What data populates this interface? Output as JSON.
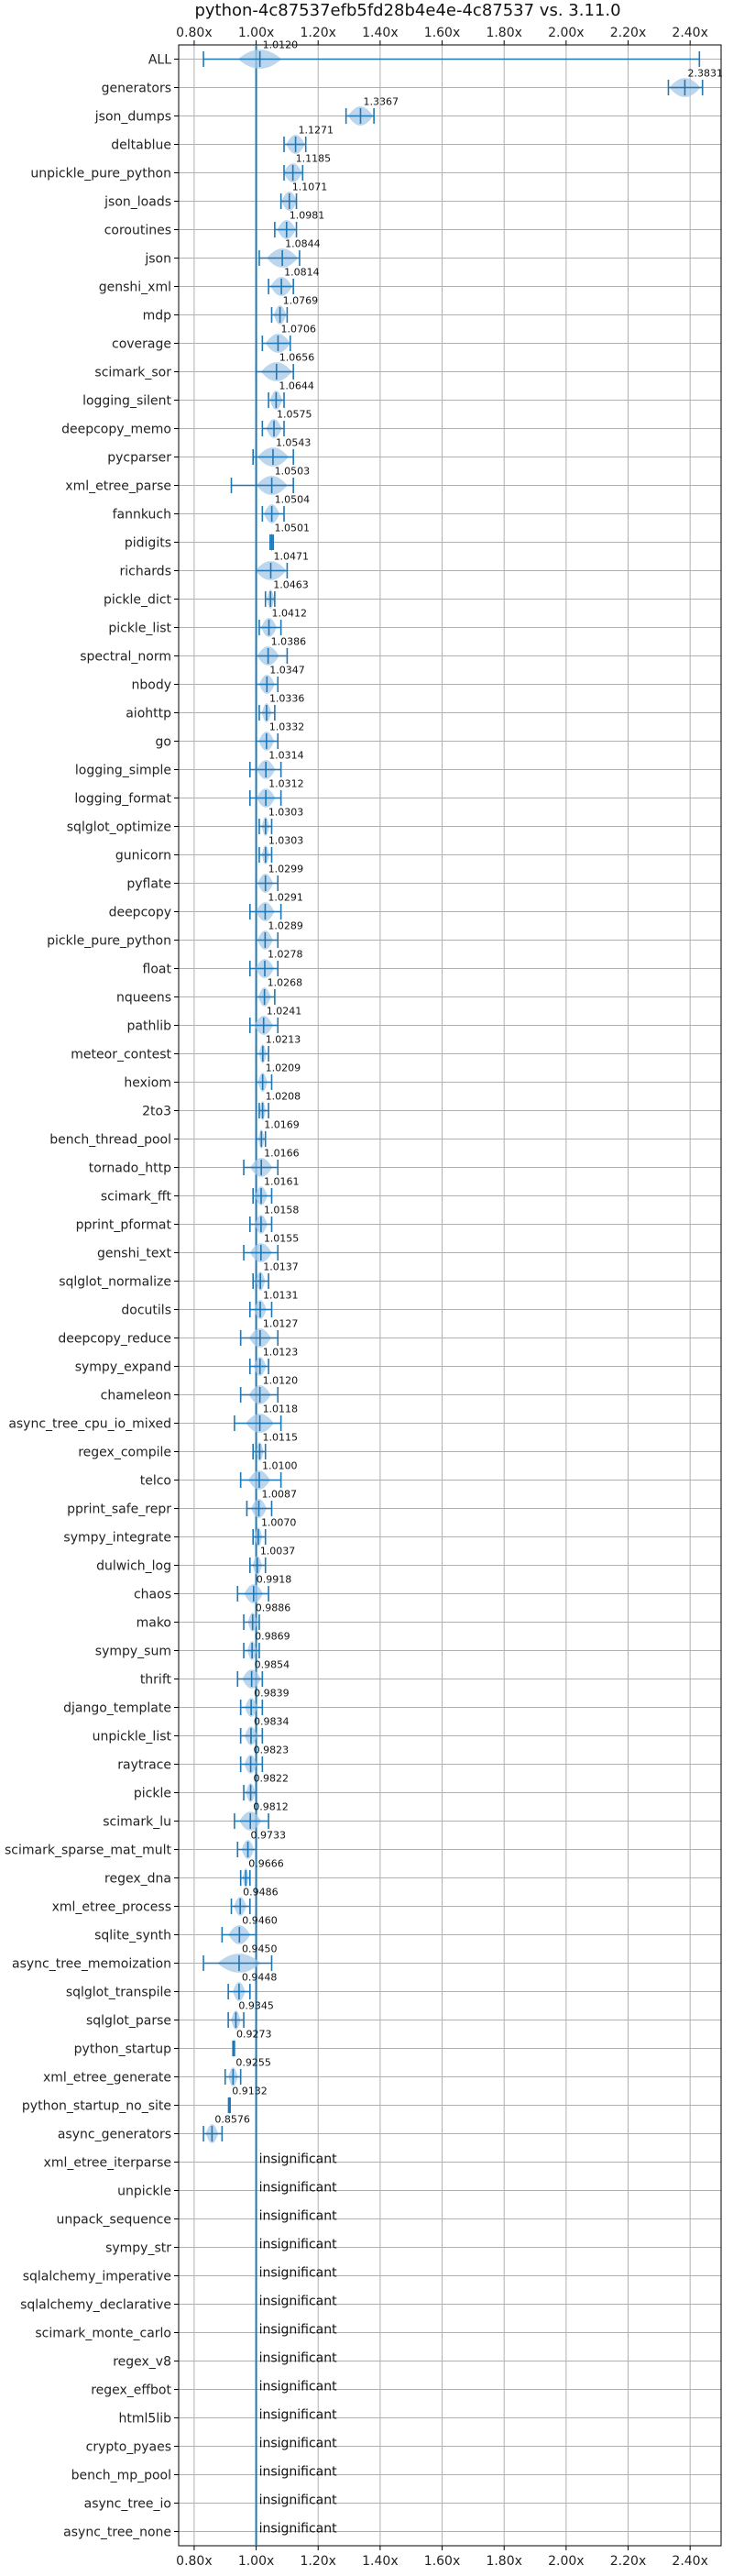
{
  "chart_data": {
    "type": "violin",
    "title": "python-4c87537efb5fd28b4e4e-4c87537 vs. 3.11.0",
    "xlim": [
      0.75,
      2.5
    ],
    "xticks": [
      0.8,
      1.0,
      1.2,
      1.4,
      1.6,
      1.8,
      2.0,
      2.2,
      2.4
    ],
    "xtick_labels": [
      "0.80x",
      "1.00x",
      "1.20x",
      "1.40x",
      "1.60x",
      "1.80x",
      "2.00x",
      "2.20x",
      "2.40x"
    ],
    "reference_line": 1.0,
    "grid": true,
    "insignificant_label": "insignificant",
    "benchmarks": [
      {
        "name": "ALL",
        "value": 1.012,
        "label": "1.0120",
        "low": 0.83,
        "high": 2.43,
        "spread": 0.07
      },
      {
        "name": "generators",
        "value": 2.3831,
        "label": "2.3831",
        "low": 2.33,
        "high": 2.44,
        "spread": 0.05
      },
      {
        "name": "json_dumps",
        "value": 1.3367,
        "label": "1.3367",
        "low": 1.29,
        "high": 1.38,
        "spread": 0.04
      },
      {
        "name": "deltablue",
        "value": 1.1271,
        "label": "1.1271",
        "low": 1.09,
        "high": 1.16,
        "spread": 0.03
      },
      {
        "name": "unpickle_pure_python",
        "value": 1.1185,
        "label": "1.1185",
        "low": 1.09,
        "high": 1.15,
        "spread": 0.03
      },
      {
        "name": "json_loads",
        "value": 1.1071,
        "label": "1.1071",
        "low": 1.08,
        "high": 1.13,
        "spread": 0.025
      },
      {
        "name": "coroutines",
        "value": 1.0981,
        "label": "1.0981",
        "low": 1.06,
        "high": 1.13,
        "spread": 0.03
      },
      {
        "name": "json",
        "value": 1.0844,
        "label": "1.0844",
        "low": 1.01,
        "high": 1.14,
        "spread": 0.05
      },
      {
        "name": "genshi_xml",
        "value": 1.0814,
        "label": "1.0814",
        "low": 1.04,
        "high": 1.12,
        "spread": 0.035
      },
      {
        "name": "mdp",
        "value": 1.0769,
        "label": "1.0769",
        "low": 1.05,
        "high": 1.1,
        "spread": 0.02
      },
      {
        "name": "coverage",
        "value": 1.0706,
        "label": "1.0706",
        "low": 1.02,
        "high": 1.11,
        "spread": 0.04
      },
      {
        "name": "scimark_sor",
        "value": 1.0656,
        "label": "1.0656",
        "low": 1.0,
        "high": 1.12,
        "spread": 0.05
      },
      {
        "name": "logging_silent",
        "value": 1.0644,
        "label": "1.0644",
        "low": 1.04,
        "high": 1.09,
        "spread": 0.02
      },
      {
        "name": "deepcopy_memo",
        "value": 1.0575,
        "label": "1.0575",
        "low": 1.02,
        "high": 1.09,
        "spread": 0.025
      },
      {
        "name": "pycparser",
        "value": 1.0543,
        "label": "1.0543",
        "low": 0.99,
        "high": 1.12,
        "spread": 0.05
      },
      {
        "name": "xml_etree_parse",
        "value": 1.0503,
        "label": "1.0503",
        "low": 0.92,
        "high": 1.12,
        "spread": 0.05
      },
      {
        "name": "fannkuch",
        "value": 1.0504,
        "label": "1.0504",
        "low": 1.02,
        "high": 1.09,
        "spread": 0.025
      },
      {
        "name": "pidigits",
        "value": 1.0501,
        "label": "1.0501",
        "low": 1.045,
        "high": 1.055,
        "spread": 0.005
      },
      {
        "name": "richards",
        "value": 1.0471,
        "label": "1.0471",
        "low": 1.0,
        "high": 1.1,
        "spread": 0.05
      },
      {
        "name": "pickle_dict",
        "value": 1.0463,
        "label": "1.0463",
        "low": 1.03,
        "high": 1.06,
        "spread": 0.012
      },
      {
        "name": "pickle_list",
        "value": 1.0412,
        "label": "1.0412",
        "low": 1.01,
        "high": 1.08,
        "spread": 0.025
      },
      {
        "name": "spectral_norm",
        "value": 1.0386,
        "label": "1.0386",
        "low": 1.0,
        "high": 1.1,
        "spread": 0.035
      },
      {
        "name": "nbody",
        "value": 1.0347,
        "label": "1.0347",
        "low": 1.0,
        "high": 1.07,
        "spread": 0.025
      },
      {
        "name": "aiohttp",
        "value": 1.0336,
        "label": "1.0336",
        "low": 1.01,
        "high": 1.06,
        "spread": 0.015
      },
      {
        "name": "go",
        "value": 1.0332,
        "label": "1.0332",
        "low": 1.0,
        "high": 1.07,
        "spread": 0.025
      },
      {
        "name": "logging_simple",
        "value": 1.0314,
        "label": "1.0314",
        "low": 0.98,
        "high": 1.08,
        "spread": 0.03
      },
      {
        "name": "logging_format",
        "value": 1.0312,
        "label": "1.0312",
        "low": 0.98,
        "high": 1.08,
        "spread": 0.03
      },
      {
        "name": "sqlglot_optimize",
        "value": 1.0303,
        "label": "1.0303",
        "low": 1.01,
        "high": 1.05,
        "spread": 0.012
      },
      {
        "name": "gunicorn",
        "value": 1.0303,
        "label": "1.0303",
        "low": 1.01,
        "high": 1.05,
        "spread": 0.012
      },
      {
        "name": "pyflate",
        "value": 1.0299,
        "label": "1.0299",
        "low": 1.0,
        "high": 1.07,
        "spread": 0.025
      },
      {
        "name": "deepcopy",
        "value": 1.0291,
        "label": "1.0291",
        "low": 0.98,
        "high": 1.08,
        "spread": 0.03
      },
      {
        "name": "pickle_pure_python",
        "value": 1.0289,
        "label": "1.0289",
        "low": 1.0,
        "high": 1.07,
        "spread": 0.025
      },
      {
        "name": "float",
        "value": 1.0278,
        "label": "1.0278",
        "low": 0.98,
        "high": 1.07,
        "spread": 0.03
      },
      {
        "name": "nqueens",
        "value": 1.0268,
        "label": "1.0268",
        "low": 1.0,
        "high": 1.06,
        "spread": 0.02
      },
      {
        "name": "pathlib",
        "value": 1.0241,
        "label": "1.0241",
        "low": 0.98,
        "high": 1.07,
        "spread": 0.03
      },
      {
        "name": "meteor_contest",
        "value": 1.0213,
        "label": "1.0213",
        "low": 1.0,
        "high": 1.04,
        "spread": 0.012
      },
      {
        "name": "hexiom",
        "value": 1.0209,
        "label": "1.0209",
        "low": 1.0,
        "high": 1.05,
        "spread": 0.015
      },
      {
        "name": "2to3",
        "value": 1.0208,
        "label": "1.0208",
        "low": 1.01,
        "high": 1.04,
        "spread": 0.01
      },
      {
        "name": "bench_thread_pool",
        "value": 1.0169,
        "label": "1.0169",
        "low": 1.0,
        "high": 1.03,
        "spread": 0.01
      },
      {
        "name": "tornado_http",
        "value": 1.0166,
        "label": "1.0166",
        "low": 0.96,
        "high": 1.07,
        "spread": 0.035
      },
      {
        "name": "scimark_fft",
        "value": 1.0161,
        "label": "1.0161",
        "low": 0.99,
        "high": 1.05,
        "spread": 0.02
      },
      {
        "name": "pprint_pformat",
        "value": 1.0158,
        "label": "1.0158",
        "low": 0.98,
        "high": 1.05,
        "spread": 0.02
      },
      {
        "name": "genshi_text",
        "value": 1.0155,
        "label": "1.0155",
        "low": 0.96,
        "high": 1.07,
        "spread": 0.035
      },
      {
        "name": "sqlglot_normalize",
        "value": 1.0137,
        "label": "1.0137",
        "low": 0.99,
        "high": 1.04,
        "spread": 0.015
      },
      {
        "name": "docutils",
        "value": 1.0131,
        "label": "1.0131",
        "low": 0.98,
        "high": 1.05,
        "spread": 0.02
      },
      {
        "name": "deepcopy_reduce",
        "value": 1.0127,
        "label": "1.0127",
        "low": 0.95,
        "high": 1.07,
        "spread": 0.035
      },
      {
        "name": "sympy_expand",
        "value": 1.0123,
        "label": "1.0123",
        "low": 0.98,
        "high": 1.04,
        "spread": 0.02
      },
      {
        "name": "chameleon",
        "value": 1.012,
        "label": "1.0120",
        "low": 0.95,
        "high": 1.07,
        "spread": 0.035
      },
      {
        "name": "async_tree_cpu_io_mixed",
        "value": 1.0118,
        "label": "1.0118",
        "low": 0.93,
        "high": 1.08,
        "spread": 0.045
      },
      {
        "name": "regex_compile",
        "value": 1.0115,
        "label": "1.0115",
        "low": 0.99,
        "high": 1.03,
        "spread": 0.012
      },
      {
        "name": "telco",
        "value": 1.01,
        "label": "1.0100",
        "low": 0.95,
        "high": 1.08,
        "spread": 0.035
      },
      {
        "name": "pprint_safe_repr",
        "value": 1.0087,
        "label": "1.0087",
        "low": 0.97,
        "high": 1.05,
        "spread": 0.025
      },
      {
        "name": "sympy_integrate",
        "value": 1.007,
        "label": "1.0070",
        "low": 0.99,
        "high": 1.03,
        "spread": 0.012
      },
      {
        "name": "dulwich_log",
        "value": 1.0037,
        "label": "1.0037",
        "low": 0.98,
        "high": 1.03,
        "spread": 0.015
      },
      {
        "name": "chaos",
        "value": 0.9918,
        "label": "0.9918",
        "low": 0.94,
        "high": 1.04,
        "spread": 0.03
      },
      {
        "name": "mako",
        "value": 0.9886,
        "label": "0.9886",
        "low": 0.96,
        "high": 1.01,
        "spread": 0.015
      },
      {
        "name": "sympy_sum",
        "value": 0.9869,
        "label": "0.9869",
        "low": 0.96,
        "high": 1.01,
        "spread": 0.015
      },
      {
        "name": "thrift",
        "value": 0.9854,
        "label": "0.9854",
        "low": 0.94,
        "high": 1.02,
        "spread": 0.03
      },
      {
        "name": "django_template",
        "value": 0.9839,
        "label": "0.9839",
        "low": 0.95,
        "high": 1.02,
        "spread": 0.02
      },
      {
        "name": "unpickle_list",
        "value": 0.9834,
        "label": "0.9834",
        "low": 0.95,
        "high": 1.02,
        "spread": 0.02
      },
      {
        "name": "raytrace",
        "value": 0.9823,
        "label": "0.9823",
        "low": 0.95,
        "high": 1.02,
        "spread": 0.02
      },
      {
        "name": "pickle",
        "value": 0.9822,
        "label": "0.9822",
        "low": 0.96,
        "high": 1.0,
        "spread": 0.015
      },
      {
        "name": "scimark_lu",
        "value": 0.9812,
        "label": "0.9812",
        "low": 0.93,
        "high": 1.04,
        "spread": 0.035
      },
      {
        "name": "scimark_sparse_mat_mult",
        "value": 0.9733,
        "label": "0.9733",
        "low": 0.94,
        "high": 1.0,
        "spread": 0.02
      },
      {
        "name": "regex_dna",
        "value": 0.9666,
        "label": "0.9666",
        "low": 0.95,
        "high": 0.98,
        "spread": 0.01
      },
      {
        "name": "xml_etree_process",
        "value": 0.9486,
        "label": "0.9486",
        "low": 0.92,
        "high": 0.98,
        "spread": 0.02
      },
      {
        "name": "sqlite_synth",
        "value": 0.946,
        "label": "0.9460",
        "low": 0.89,
        "high": 1.0,
        "spread": 0.035
      },
      {
        "name": "async_tree_memoization",
        "value": 0.945,
        "label": "0.9450",
        "low": 0.83,
        "high": 1.05,
        "spread": 0.07
      },
      {
        "name": "sqlglot_transpile",
        "value": 0.9448,
        "label": "0.9448",
        "low": 0.91,
        "high": 0.98,
        "spread": 0.02
      },
      {
        "name": "sqlglot_parse",
        "value": 0.9345,
        "label": "0.9345",
        "low": 0.91,
        "high": 0.96,
        "spread": 0.015
      },
      {
        "name": "python_startup",
        "value": 0.9273,
        "label": "0.9273",
        "low": 0.925,
        "high": 0.93,
        "spread": 0.003
      },
      {
        "name": "xml_etree_generate",
        "value": 0.9255,
        "label": "0.9255",
        "low": 0.9,
        "high": 0.95,
        "spread": 0.015
      },
      {
        "name": "python_startup_no_site",
        "value": 0.9132,
        "label": "0.9132",
        "low": 0.911,
        "high": 0.916,
        "spread": 0.003
      },
      {
        "name": "async_generators",
        "value": 0.8576,
        "label": "0.8576",
        "low": 0.83,
        "high": 0.89,
        "spread": 0.02
      },
      {
        "name": "xml_etree_iterparse",
        "insignificant": true
      },
      {
        "name": "unpickle",
        "insignificant": true
      },
      {
        "name": "unpack_sequence",
        "insignificant": true
      },
      {
        "name": "sympy_str",
        "insignificant": true
      },
      {
        "name": "sqlalchemy_imperative",
        "insignificant": true
      },
      {
        "name": "sqlalchemy_declarative",
        "insignificant": true
      },
      {
        "name": "scimark_monte_carlo",
        "insignificant": true
      },
      {
        "name": "regex_v8",
        "insignificant": true
      },
      {
        "name": "regex_effbot",
        "insignificant": true
      },
      {
        "name": "html5lib",
        "insignificant": true
      },
      {
        "name": "crypto_pyaes",
        "insignificant": true
      },
      {
        "name": "bench_mp_pool",
        "insignificant": true
      },
      {
        "name": "async_tree_io",
        "insignificant": true
      },
      {
        "name": "async_tree_none",
        "insignificant": true
      }
    ]
  },
  "colors": {
    "line": "#1f77b4",
    "violin": "#a6c8e8",
    "grid": "#b0b0b0",
    "axis": "#000000",
    "text": "#111111"
  }
}
